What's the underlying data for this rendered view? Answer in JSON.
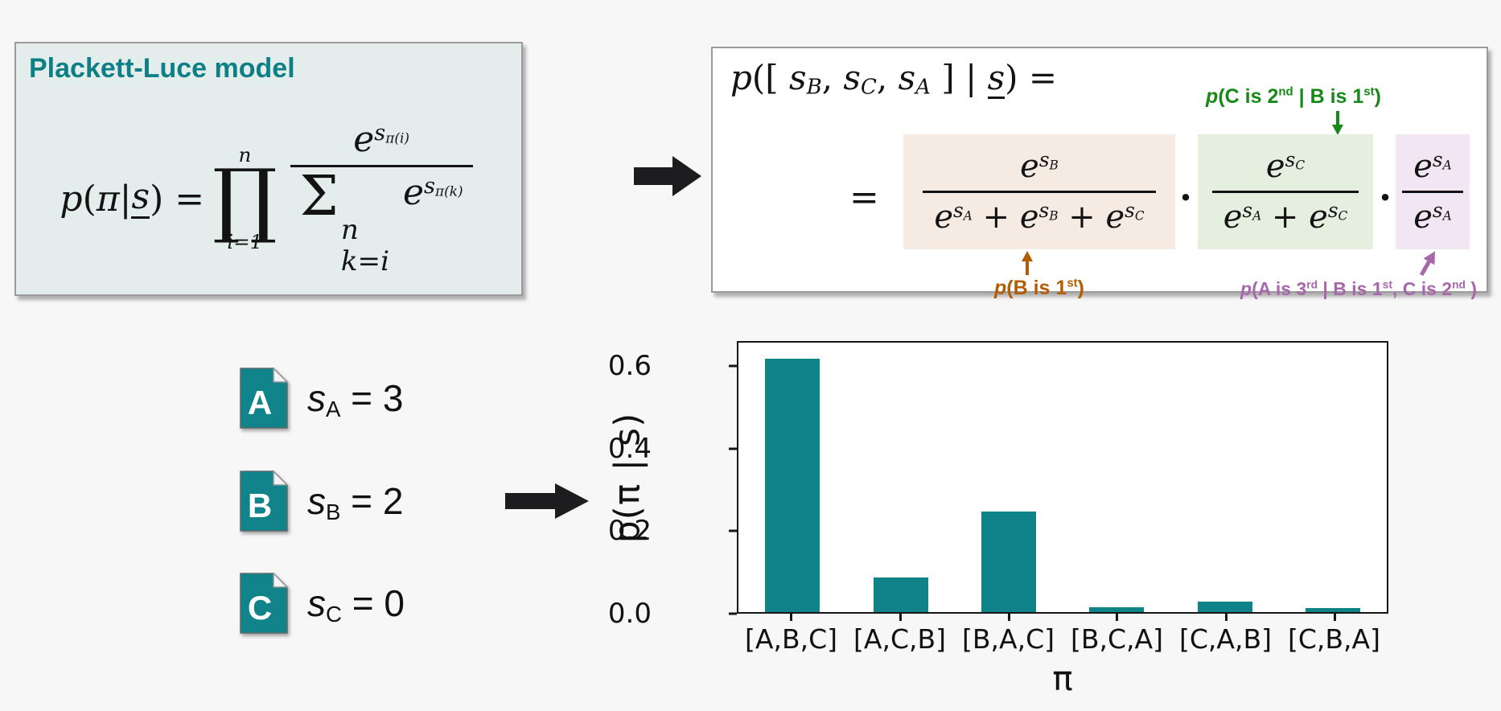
{
  "colors": {
    "teal": "#0e8287",
    "page_bg": "#f7f7f8",
    "left_box_bg": "#e3eeec",
    "green": "#178917",
    "orange": "#b35d04",
    "purple": "#a867ab",
    "tan_bg": "#f5ebe2",
    "green_bg": "#e4efe0",
    "lavender_bg": "#f2e6f3",
    "bar": "#0e8388"
  },
  "plackett_box": {
    "title": "Plackett-Luce model",
    "formula": [
      {
        "t": "p",
        "v": 1
      },
      {
        "t": "("
      },
      {
        "t": "π",
        "v": 1
      },
      {
        "t": " | "
      },
      {
        "t": "s",
        "v": 1,
        "u": 1
      },
      {
        "t": ") = "
      },
      {
        "bigop": "∏",
        "top": "n",
        "bot": "i=1"
      },
      {
        "frac": {
          "num": [
            {
              "t": "e",
              "v": 1,
              "sup": [
                {
                  "t": "s",
                  "sub": [
                    {
                      "t": "π(i)"
                    }
                  ]
                }
              ]
            }
          ],
          "den": [
            {
              "t": "Σ",
              "cls": "sum",
              "rsup": "n",
              "rsub": "k=i"
            },
            {
              "t": " "
            },
            {
              "t": "e",
              "v": 1,
              "sup": [
                {
                  "t": "s",
                  "sub": [
                    {
                      "t": "π(k)"
                    }
                  ]
                }
              ]
            }
          ]
        }
      }
    ]
  },
  "expansion_box": {
    "header": [
      {
        "t": "p",
        "v": 1
      },
      {
        "t": "([ "
      },
      {
        "t": "s",
        "v": 1,
        "sub": [
          {
            "t": "B"
          }
        ]
      },
      {
        "t": ", "
      },
      {
        "t": "s",
        "v": 1,
        "sub": [
          {
            "t": "C"
          }
        ]
      },
      {
        "t": ", "
      },
      {
        "t": "s",
        "v": 1,
        "sub": [
          {
            "t": "A"
          }
        ]
      },
      {
        "t": " ] | "
      },
      {
        "t": "s",
        "v": 1,
        "u": 1
      },
      {
        "t": ") ="
      }
    ],
    "equals": "=",
    "dot": "·",
    "fractions": {
      "first": {
        "num": [
          {
            "t": "e",
            "v": 1,
            "sup": [
              {
                "t": "s",
                "sub": [
                  {
                    "t": "B"
                  }
                ]
              }
            ]
          }
        ],
        "den": [
          {
            "t": "e",
            "v": 1,
            "sup": [
              {
                "t": "s",
                "sub": [
                  {
                    "t": "A"
                  }
                ]
              }
            ]
          },
          {
            "t": " + "
          },
          {
            "t": "e",
            "v": 1,
            "sup": [
              {
                "t": "s",
                "sub": [
                  {
                    "t": "B"
                  }
                ]
              }
            ]
          },
          {
            "t": " + "
          },
          {
            "t": "e",
            "v": 1,
            "sup": [
              {
                "t": "s",
                "sub": [
                  {
                    "t": "C"
                  }
                ]
              }
            ]
          }
        ]
      },
      "second": {
        "num": [
          {
            "t": "e",
            "v": 1,
            "sup": [
              {
                "t": "s",
                "sub": [
                  {
                    "t": "C"
                  }
                ]
              }
            ]
          }
        ],
        "den": [
          {
            "t": "e",
            "v": 1,
            "sup": [
              {
                "t": "s",
                "sub": [
                  {
                    "t": "A"
                  }
                ]
              }
            ]
          },
          {
            "t": " + "
          },
          {
            "t": "e",
            "v": 1,
            "sup": [
              {
                "t": "s",
                "sub": [
                  {
                    "t": "C"
                  }
                ]
              }
            ]
          }
        ]
      },
      "third": {
        "num": [
          {
            "t": "e",
            "v": 1,
            "sup": [
              {
                "t": "s",
                "sub": [
                  {
                    "t": "A"
                  }
                ]
              }
            ]
          }
        ],
        "den": [
          {
            "t": "e",
            "v": 1,
            "sup": [
              {
                "t": "s",
                "sub": [
                  {
                    "t": "A"
                  }
                ]
              }
            ]
          }
        ]
      }
    },
    "green_annotation": [
      {
        "t": "p",
        "v": 1
      },
      {
        "t": "(C is 2"
      },
      {
        "t": "",
        "sup": [
          {
            "t": "nd"
          }
        ]
      },
      {
        "t": "  |  B is 1"
      },
      {
        "t": "",
        "sup": [
          {
            "t": "st"
          }
        ]
      },
      {
        "t": ")"
      }
    ],
    "orange_annotation": [
      {
        "t": "p",
        "v": 1
      },
      {
        "t": "(B is 1"
      },
      {
        "t": "",
        "sup": [
          {
            "t": "st"
          }
        ]
      },
      {
        "t": ")"
      }
    ],
    "purple_annotation": [
      {
        "t": "p",
        "v": 1
      },
      {
        "t": "(A is 3"
      },
      {
        "t": "",
        "sup": [
          {
            "t": "rd"
          }
        ]
      },
      {
        "t": "  |  B is 1"
      },
      {
        "t": "",
        "sup": [
          {
            "t": "st"
          }
        ]
      },
      {
        "t": ", C is 2"
      },
      {
        "t": "",
        "sup": [
          {
            "t": "nd"
          }
        ]
      },
      {
        "t": " )"
      }
    ]
  },
  "items": [
    {
      "letter": "A",
      "var": "s",
      "sub": "A",
      "eq_value": " = 3"
    },
    {
      "letter": "B",
      "var": "s",
      "sub": "B",
      "eq_value": " = 2"
    },
    {
      "letter": "C",
      "var": "s",
      "sub": "C",
      "eq_value": " = 0"
    }
  ],
  "chart_data": {
    "type": "bar",
    "categories": [
      "[A,B,C]",
      "[A,C,B]",
      "[B,A,C]",
      "[B,C,A]",
      "[C,A,B]",
      "[C,B,A]"
    ],
    "values": [
      0.621,
      0.084,
      0.247,
      0.012,
      0.026,
      0.009
    ],
    "title": "",
    "xlabel": "π",
    "ylabel": "p(π | s)",
    "ylim": [
      0,
      0.66
    ],
    "yticks": [
      0.0,
      0.2,
      0.4,
      0.6
    ],
    "grid": false,
    "legend": false,
    "bar_color": "#0e8388"
  }
}
